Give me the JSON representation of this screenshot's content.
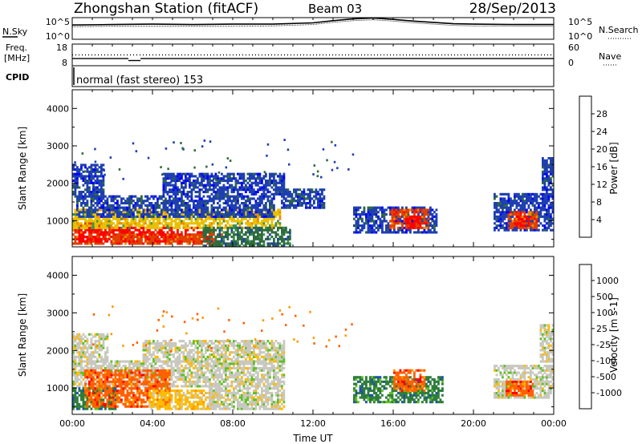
{
  "header": {
    "station": "Zhongshan Station (fitACF)",
    "beam": "Beam 03",
    "date": "28/Sep/2013"
  },
  "strip_labels": {
    "nsky": "N.Sky",
    "nsky_top": "10^5",
    "nsky_bottom": "10^0",
    "freq_line1": "Freq.",
    "freq_line2": "[MHz]",
    "freq_top": "18",
    "freq_bottom": "8",
    "cpid": "CPID",
    "nsearch": "N.Search",
    "nsearch_top": "10^5",
    "nsearch_bottom": "10^0",
    "nave": "Nave",
    "nave_top": "60",
    "nave_bottom": "0",
    "mode": "normal (fast stereo) 153"
  },
  "colors": {
    "power": [
      "#0000ff",
      "#1f3fb0",
      "#2e6b3c",
      "#3f8f55",
      "#e8c000",
      "#f08a00",
      "#e04000",
      "#ff0000"
    ],
    "velocity": [
      "#ff0000",
      "#ff6000",
      "#ff9900",
      "#ffbb00",
      "#c8c8c0",
      "#60c020",
      "#2e7d3c",
      "#2050b0",
      "#0000ff"
    ]
  },
  "chart_data": [
    {
      "type": "line",
      "name": "noise",
      "x_unit": "hours UT",
      "x": [
        0,
        2,
        4,
        6,
        8,
        10,
        12,
        13,
        14,
        15,
        16,
        17,
        18,
        19,
        20,
        22,
        24
      ],
      "series": [
        {
          "name": "N.Sky",
          "values": [
            3.3,
            3.4,
            3.5,
            3.4,
            3.5,
            3.5,
            3.8,
            4.3,
            4.7,
            4.9,
            4.6,
            4.2,
            3.9,
            3.6,
            3.5,
            3.4,
            3.4
          ]
        },
        {
          "name": "N.Search",
          "values": [
            2.9,
            3.0,
            3.0,
            3.0,
            3.0,
            3.1,
            3.4,
            3.9,
            4.3,
            4.5,
            4.2,
            3.8,
            3.5,
            3.2,
            3.1,
            3.0,
            3.0
          ]
        }
      ],
      "ylim": [
        0,
        5
      ]
    },
    {
      "type": "scatter",
      "name": "frequency",
      "x_unit": "hours UT",
      "series": [
        {
          "name": "Freq",
          "segments": [
            [
              0,
              2.8,
              11.3
            ],
            [
              2.8,
              3.4,
              10.4
            ],
            [
              3.4,
              24,
              11.3
            ]
          ]
        },
        {
          "name": "Nave",
          "segments": [
            [
              0,
              24,
              30
            ]
          ]
        }
      ],
      "ylim": [
        8,
        18
      ]
    },
    {
      "type": "heatmap",
      "name": "power",
      "xlabel": "",
      "ylabel": "Slant Range [km]",
      "xlim": [
        0,
        24
      ],
      "ylim": [
        300,
        4500
      ],
      "yticks": [
        1000,
        2000,
        3000,
        4000
      ],
      "colorbar_label": "Power [dB]",
      "colorbar_ticks": [
        "4",
        "8",
        "12",
        "16",
        "20",
        "24",
        "28"
      ],
      "regions": [
        {
          "t0": 0.0,
          "t1": 2.0,
          "r0": 350,
          "r1": 950,
          "level": 6
        },
        {
          "t0": 0.3,
          "t1": 7.0,
          "r0": 400,
          "r1": 800,
          "level": 7
        },
        {
          "t0": 2.0,
          "t1": 7.5,
          "r0": 350,
          "r1": 650,
          "level": 6
        },
        {
          "t0": 0.0,
          "t1": 10.3,
          "r0": 750,
          "r1": 1250,
          "level": 4
        },
        {
          "t0": 0.2,
          "t1": 10.0,
          "r0": 1100,
          "r1": 1650,
          "level": 1
        },
        {
          "t0": 0.0,
          "t1": 1.6,
          "r0": 1600,
          "r1": 2450,
          "level": 1
        },
        {
          "t0": 4.5,
          "t1": 10.5,
          "r0": 1700,
          "r1": 2300,
          "level": 1
        },
        {
          "t0": 6.5,
          "t1": 10.8,
          "r0": 300,
          "r1": 800,
          "level": 2
        },
        {
          "t0": 10.4,
          "t1": 12.5,
          "r0": 1300,
          "r1": 1800,
          "level": 1
        },
        {
          "t0": 14.0,
          "t1": 18.2,
          "r0": 650,
          "r1": 1350,
          "level": 1
        },
        {
          "t0": 15.8,
          "t1": 17.8,
          "r0": 750,
          "r1": 1250,
          "level": 6
        },
        {
          "t0": 16.6,
          "t1": 17.4,
          "r0": 800,
          "r1": 1150,
          "level": 7
        },
        {
          "t0": 21.0,
          "t1": 24.0,
          "r0": 700,
          "r1": 1700,
          "level": 1
        },
        {
          "t0": 21.7,
          "t1": 23.2,
          "r0": 800,
          "r1": 1250,
          "level": 6
        },
        {
          "t0": 22.1,
          "t1": 22.8,
          "r0": 850,
          "r1": 1100,
          "level": 7
        },
        {
          "t0": 23.4,
          "t1": 24.0,
          "r0": 1700,
          "r1": 2700,
          "level": 1
        }
      ]
    },
    {
      "type": "heatmap",
      "name": "velocity",
      "xlabel": "Time UT",
      "ylabel": "Slant Range [km]",
      "xlim": [
        0,
        24
      ],
      "ylim": [
        300,
        4500
      ],
      "xticks": [
        "00:00",
        "04:00",
        "08:00",
        "12:00",
        "16:00",
        "20:00",
        "00:00"
      ],
      "yticks": [
        1000,
        2000,
        3000,
        4000
      ],
      "colorbar_label": "Velocity [m s-1]",
      "colorbar_ticks": [
        "-1000",
        "-500",
        "-100",
        "-25",
        "25",
        "100",
        "500",
        "1000"
      ],
      "regions": [
        {
          "t0": 0.0,
          "t1": 10.5,
          "r0": 1000,
          "r1": 1700,
          "level": 4
        },
        {
          "t0": 0.0,
          "t1": 1.8,
          "r0": 1700,
          "r1": 2450,
          "level": 4
        },
        {
          "t0": 3.5,
          "t1": 10.5,
          "r0": 1700,
          "r1": 2300,
          "level": 4
        },
        {
          "t0": 0.0,
          "t1": 2.2,
          "r0": 400,
          "r1": 1000,
          "level": 6
        },
        {
          "t0": 0.6,
          "t1": 4.8,
          "r0": 500,
          "r1": 1500,
          "level": 1
        },
        {
          "t0": 3.8,
          "t1": 7.2,
          "r0": 400,
          "r1": 900,
          "level": 3
        },
        {
          "t0": 6.8,
          "t1": 10.5,
          "r0": 400,
          "r1": 950,
          "level": 4
        },
        {
          "t0": 14.0,
          "t1": 18.5,
          "r0": 600,
          "r1": 1300,
          "level": 6
        },
        {
          "t0": 16.0,
          "t1": 17.6,
          "r0": 900,
          "r1": 1500,
          "level": 1
        },
        {
          "t0": 21.0,
          "t1": 24.0,
          "r0": 700,
          "r1": 1600,
          "level": 4
        },
        {
          "t0": 21.6,
          "t1": 23.0,
          "r0": 800,
          "r1": 1200,
          "level": 1
        },
        {
          "t0": 23.3,
          "t1": 24.0,
          "r0": 1700,
          "r1": 2700,
          "level": 4
        }
      ]
    }
  ]
}
